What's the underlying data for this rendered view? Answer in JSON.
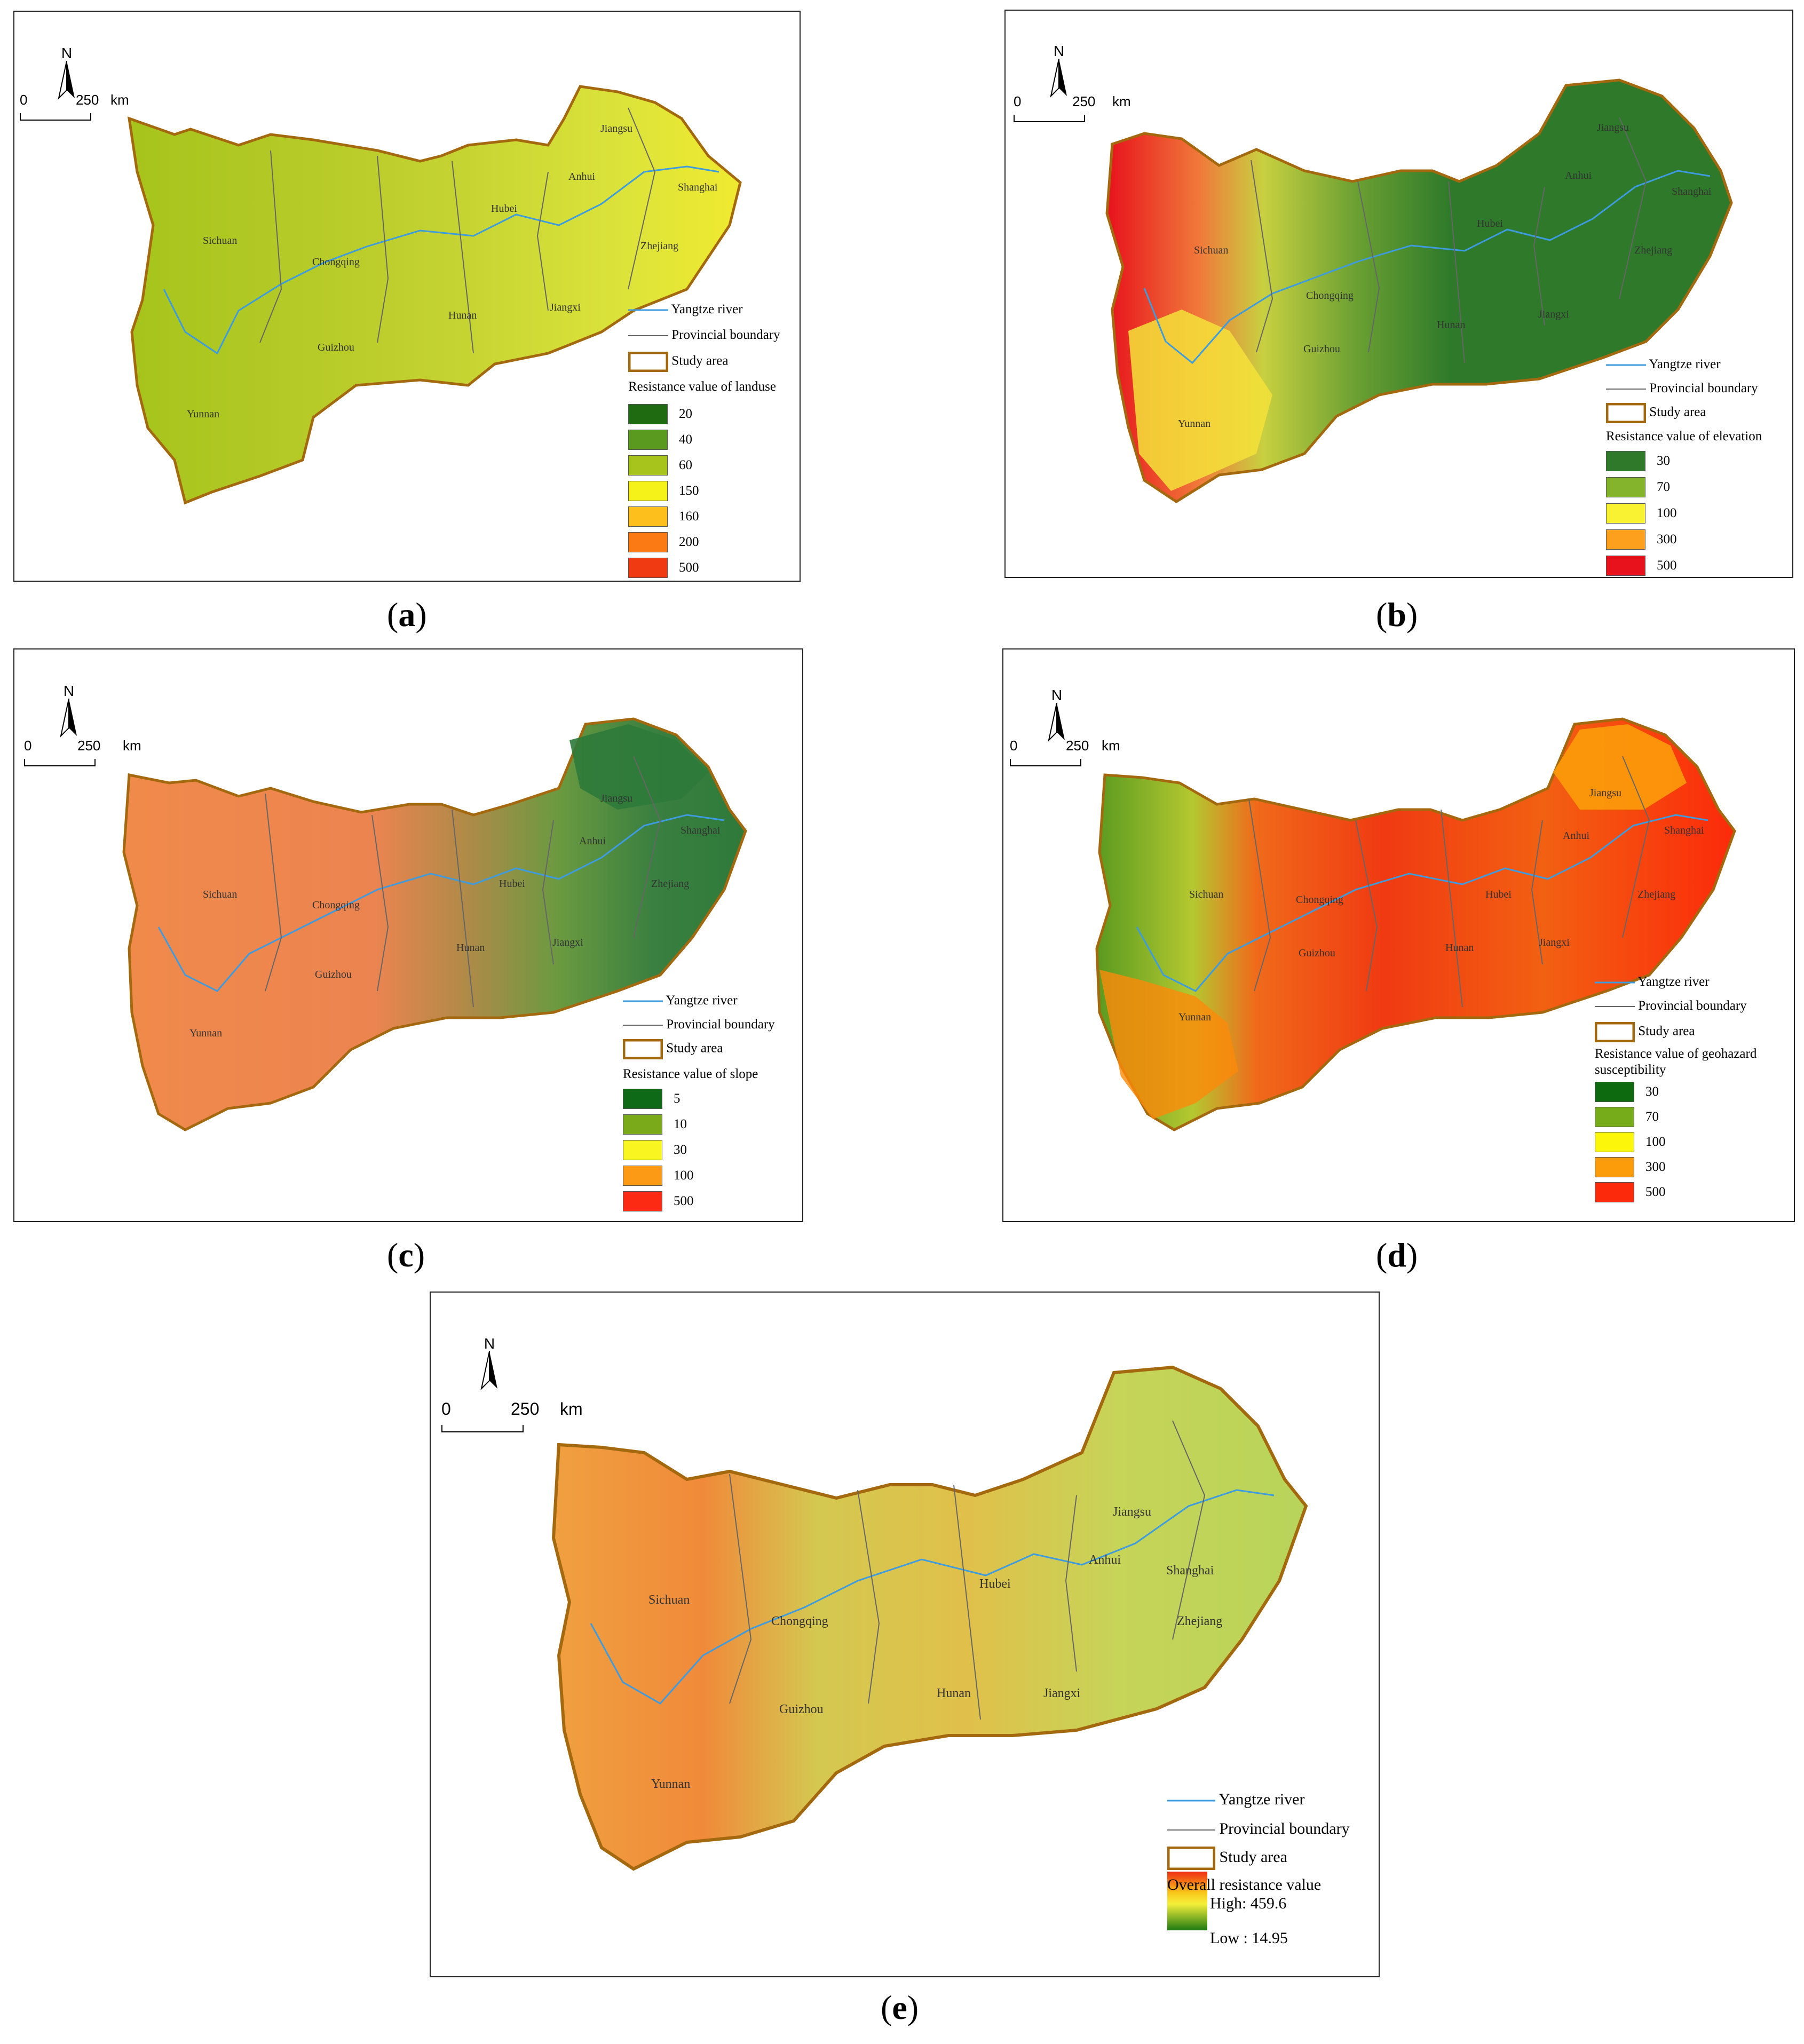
{
  "common": {
    "north": "N",
    "scale_zero": "0",
    "scale_value": "250",
    "scale_unit": "km",
    "legend_river": "Yangtze river",
    "legend_boundary": "Provincial boundary",
    "legend_study": "Study area",
    "provinces": [
      "Sichuan",
      "Chongqing",
      "Guizhou",
      "Yunnan",
      "Hubei",
      "Hunan",
      "Jiangxi",
      "Anhui",
      "Jiangsu",
      "Shanghai",
      "Zhejiang"
    ]
  },
  "colors": {
    "river": "#3d9be0",
    "boundary": "#666666",
    "study": "#a4680f"
  },
  "panels": [
    {
      "id": "a",
      "caption": "a",
      "legend_title": "Resistance value of landuse",
      "classes": [
        {
          "value": "20",
          "color": "#1e6b12"
        },
        {
          "value": "40",
          "color": "#5a9a1e"
        },
        {
          "value": "60",
          "color": "#a6c41c"
        },
        {
          "value": "150",
          "color": "#f5f21a"
        },
        {
          "value": "160",
          "color": "#fcbf1c"
        },
        {
          "value": "200",
          "color": "#fc7a14"
        },
        {
          "value": "500",
          "color": "#f03a12"
        }
      ]
    },
    {
      "id": "b",
      "caption": "b",
      "legend_title": "Resistance value of elevation",
      "classes": [
        {
          "value": "30",
          "color": "#2e7a2a"
        },
        {
          "value": "70",
          "color": "#84b42c"
        },
        {
          "value": "100",
          "color": "#f8f232"
        },
        {
          "value": "300",
          "color": "#fca01e"
        },
        {
          "value": "500",
          "color": "#e8121c"
        }
      ]
    },
    {
      "id": "c",
      "caption": "c",
      "legend_title": "Resistance value of slope",
      "classes": [
        {
          "value": "5",
          "color": "#0e6a16"
        },
        {
          "value": "10",
          "color": "#7aaa1a"
        },
        {
          "value": "30",
          "color": "#f8f520"
        },
        {
          "value": "100",
          "color": "#fc9a16"
        },
        {
          "value": "500",
          "color": "#fc2a12"
        }
      ]
    },
    {
      "id": "d",
      "caption": "d",
      "legend_title": "Resistance value of geohazard",
      "legend_title2": "susceptibility",
      "classes": [
        {
          "value": "30",
          "color": "#0e6a0e"
        },
        {
          "value": "70",
          "color": "#76ac1a"
        },
        {
          "value": "100",
          "color": "#fcf70a"
        },
        {
          "value": "300",
          "color": "#fc9c0a"
        },
        {
          "value": "500",
          "color": "#fc2a0a"
        }
      ]
    },
    {
      "id": "e",
      "caption": "e",
      "legend_title": "Overall resistance value",
      "high": "High: 459.6",
      "low": "Low : 14.95"
    }
  ]
}
